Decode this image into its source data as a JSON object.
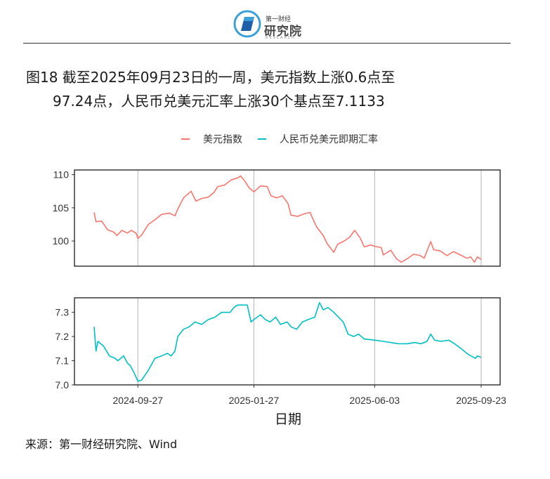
{
  "header": {
    "logo_small": "第一财经",
    "logo_main": "研究院",
    "logo_sub": "RESEARCH"
  },
  "figure": {
    "title_line1": "图18  截至2025年09月23日的一周，美元指数上涨0.6点至",
    "title_line2": "97.24点，人民币兑美元汇率上涨30个基点至7.1133",
    "source": "来源：第一财经研究院、Wind"
  },
  "colors": {
    "usd": "#F8766D",
    "cny": "#00BFC4",
    "grid": "#b5b5b5"
  },
  "chart_data": {
    "type": "line",
    "xlabel": "日期",
    "x_ticks": [
      "2024-09-27",
      "2025-01-27",
      "2025-06-03",
      "2025-09-23"
    ],
    "x_start": "2024-08-12",
    "x_end": "2025-09-23",
    "legend": {
      "position": "top",
      "entries": [
        "美元指数",
        "人民币兑美元即期汇率"
      ]
    },
    "panels": [
      {
        "series_name": "美元指数",
        "ylim": [
          96.2,
          110.7
        ],
        "y_ticks": [
          100,
          105,
          110
        ],
        "points": [
          [
            "2024-08-12",
            104.3
          ],
          [
            "2024-08-14",
            102.9
          ],
          [
            "2024-08-20",
            103.0
          ],
          [
            "2024-08-26",
            101.7
          ],
          [
            "2024-09-02",
            101.3
          ],
          [
            "2024-09-05",
            100.8
          ],
          [
            "2024-09-10",
            101.6
          ],
          [
            "2024-09-16",
            101.2
          ],
          [
            "2024-09-20",
            101.6
          ],
          [
            "2024-09-25",
            101.2
          ],
          [
            "2024-09-27",
            100.4
          ],
          [
            "2024-10-01",
            100.9
          ],
          [
            "2024-10-08",
            102.5
          ],
          [
            "2024-10-15",
            103.2
          ],
          [
            "2024-10-22",
            104.0
          ],
          [
            "2024-10-30",
            104.2
          ],
          [
            "2024-11-05",
            103.8
          ],
          [
            "2024-11-08",
            104.8
          ],
          [
            "2024-11-14",
            106.5
          ],
          [
            "2024-11-22",
            107.5
          ],
          [
            "2024-11-27",
            106.0
          ],
          [
            "2024-12-03",
            106.4
          ],
          [
            "2024-12-10",
            106.6
          ],
          [
            "2024-12-16",
            107.3
          ],
          [
            "2024-12-20",
            108.2
          ],
          [
            "2024-12-27",
            108.4
          ],
          [
            "2025-01-03",
            109.2
          ],
          [
            "2025-01-10",
            109.5
          ],
          [
            "2025-01-13",
            109.8
          ],
          [
            "2025-01-17",
            109.1
          ],
          [
            "2025-01-22",
            108.0
          ],
          [
            "2025-01-27",
            107.4
          ],
          [
            "2025-02-03",
            108.3
          ],
          [
            "2025-02-10",
            108.2
          ],
          [
            "2025-02-14",
            106.8
          ],
          [
            "2025-02-20",
            106.5
          ],
          [
            "2025-02-26",
            106.8
          ],
          [
            "2025-03-04",
            105.6
          ],
          [
            "2025-03-07",
            103.9
          ],
          [
            "2025-03-14",
            103.7
          ],
          [
            "2025-03-21",
            104.1
          ],
          [
            "2025-03-27",
            104.3
          ],
          [
            "2025-04-03",
            102.1
          ],
          [
            "2025-04-10",
            100.8
          ],
          [
            "2025-04-14",
            99.6
          ],
          [
            "2025-04-21",
            98.3
          ],
          [
            "2025-04-25",
            99.5
          ],
          [
            "2025-05-02",
            100.0
          ],
          [
            "2025-05-08",
            100.6
          ],
          [
            "2025-05-13",
            101.6
          ],
          [
            "2025-05-19",
            100.4
          ],
          [
            "2025-05-23",
            99.1
          ],
          [
            "2025-05-30",
            99.4
          ],
          [
            "2025-06-03",
            99.2
          ],
          [
            "2025-06-10",
            99.0
          ],
          [
            "2025-06-12",
            97.9
          ],
          [
            "2025-06-20",
            98.6
          ],
          [
            "2025-06-26",
            97.3
          ],
          [
            "2025-07-01",
            96.8
          ],
          [
            "2025-07-07",
            97.3
          ],
          [
            "2025-07-14",
            98.0
          ],
          [
            "2025-07-21",
            97.8
          ],
          [
            "2025-07-25",
            97.4
          ],
          [
            "2025-08-01",
            99.9
          ],
          [
            "2025-08-04",
            98.7
          ],
          [
            "2025-08-11",
            98.5
          ],
          [
            "2025-08-18",
            97.8
          ],
          [
            "2025-08-25",
            98.4
          ],
          [
            "2025-09-01",
            97.9
          ],
          [
            "2025-09-08",
            97.4
          ],
          [
            "2025-09-12",
            97.6
          ],
          [
            "2025-09-16",
            96.8
          ],
          [
            "2025-09-19",
            97.6
          ],
          [
            "2025-09-23",
            97.24
          ]
        ]
      },
      {
        "series_name": "人民币兑美元即期汇率",
        "ylim": [
          7.0,
          7.36
        ],
        "y_ticks": [
          7.0,
          7.1,
          7.2,
          7.3
        ],
        "points": [
          [
            "2024-08-12",
            7.24
          ],
          [
            "2024-08-14",
            7.14
          ],
          [
            "2024-08-16",
            7.18
          ],
          [
            "2024-08-22",
            7.16
          ],
          [
            "2024-08-28",
            7.12
          ],
          [
            "2024-09-03",
            7.11
          ],
          [
            "2024-09-06",
            7.1
          ],
          [
            "2024-09-12",
            7.12
          ],
          [
            "2024-09-16",
            7.09
          ],
          [
            "2024-09-19",
            7.08
          ],
          [
            "2024-09-23",
            7.05
          ],
          [
            "2024-09-27",
            7.015
          ],
          [
            "2024-10-01",
            7.02
          ],
          [
            "2024-10-08",
            7.06
          ],
          [
            "2024-10-15",
            7.11
          ],
          [
            "2024-10-22",
            7.12
          ],
          [
            "2024-10-28",
            7.13
          ],
          [
            "2024-11-01",
            7.12
          ],
          [
            "2024-11-05",
            7.14
          ],
          [
            "2024-11-08",
            7.2
          ],
          [
            "2024-11-14",
            7.23
          ],
          [
            "2024-11-20",
            7.24
          ],
          [
            "2024-11-26",
            7.26
          ],
          [
            "2024-12-03",
            7.25
          ],
          [
            "2024-12-10",
            7.27
          ],
          [
            "2024-12-17",
            7.28
          ],
          [
            "2024-12-24",
            7.3
          ],
          [
            "2025-01-02",
            7.3
          ],
          [
            "2025-01-06",
            7.32
          ],
          [
            "2025-01-10",
            7.33
          ],
          [
            "2025-01-14",
            7.33
          ],
          [
            "2025-01-20",
            7.33
          ],
          [
            "2025-01-24",
            7.26
          ],
          [
            "2025-01-27",
            7.27
          ],
          [
            "2025-02-03",
            7.29
          ],
          [
            "2025-02-08",
            7.27
          ],
          [
            "2025-02-13",
            7.26
          ],
          [
            "2025-02-19",
            7.28
          ],
          [
            "2025-02-24",
            7.25
          ],
          [
            "2025-03-03",
            7.26
          ],
          [
            "2025-03-07",
            7.24
          ],
          [
            "2025-03-13",
            7.23
          ],
          [
            "2025-03-19",
            7.26
          ],
          [
            "2025-03-25",
            7.27
          ],
          [
            "2025-04-01",
            7.28
          ],
          [
            "2025-04-06",
            7.34
          ],
          [
            "2025-04-10",
            7.31
          ],
          [
            "2025-04-15",
            7.32
          ],
          [
            "2025-04-21",
            7.3
          ],
          [
            "2025-04-26",
            7.28
          ],
          [
            "2025-05-01",
            7.26
          ],
          [
            "2025-05-06",
            7.21
          ],
          [
            "2025-05-12",
            7.2
          ],
          [
            "2025-05-17",
            7.21
          ],
          [
            "2025-05-23",
            7.19
          ],
          [
            "2025-06-03",
            7.185
          ],
          [
            "2025-06-12",
            7.18
          ],
          [
            "2025-06-20",
            7.175
          ],
          [
            "2025-06-28",
            7.17
          ],
          [
            "2025-07-07",
            7.17
          ],
          [
            "2025-07-15",
            7.175
          ],
          [
            "2025-07-22",
            7.17
          ],
          [
            "2025-07-28",
            7.18
          ],
          [
            "2025-08-01",
            7.21
          ],
          [
            "2025-08-05",
            7.185
          ],
          [
            "2025-08-12",
            7.18
          ],
          [
            "2025-08-20",
            7.185
          ],
          [
            "2025-08-26",
            7.17
          ],
          [
            "2025-09-02",
            7.15
          ],
          [
            "2025-09-08",
            7.13
          ],
          [
            "2025-09-12",
            7.12
          ],
          [
            "2025-09-17",
            7.11
          ],
          [
            "2025-09-19",
            7.12
          ],
          [
            "2025-09-23",
            7.1133
          ]
        ]
      }
    ]
  }
}
